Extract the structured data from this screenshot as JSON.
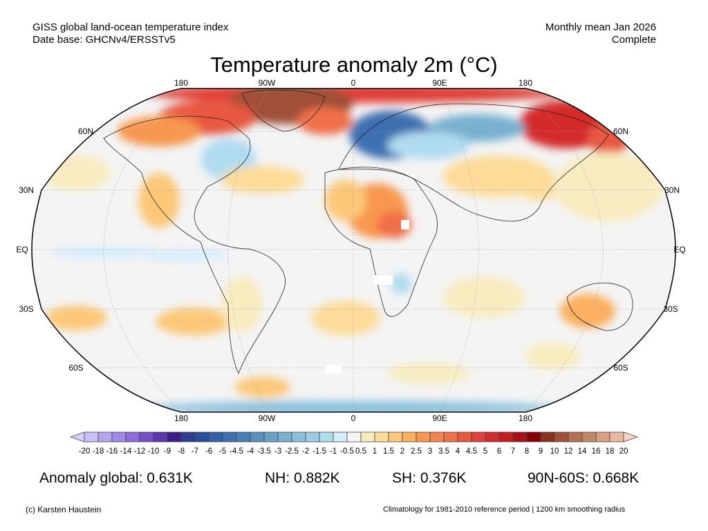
{
  "header": {
    "left_line1": "GISS global land-ocean temperature index",
    "left_line2": "Date base: GHCNv4/ERSSTv5",
    "right_line1": "Monthly mean Jan 2026",
    "right_line2": "Complete",
    "title": "Temperature anomaly 2m (°C)"
  },
  "map": {
    "projection": "Robinson",
    "lon_labels": [
      "180",
      "90W",
      "0",
      "90E",
      "180"
    ],
    "lat_labels_left": [
      "60N",
      "30N",
      "EQ",
      "30S",
      "60S"
    ],
    "lat_labels_right": [
      "60N",
      "30N",
      "EQ",
      "30S",
      "60S"
    ],
    "missing_color": "#ffffff",
    "ocean_neutral_color": "#f4f4f4"
  },
  "colorbar": {
    "labels": [
      "-20",
      "-18",
      "-16",
      "-14",
      "-12",
      "-10",
      "-9",
      "-8",
      "-7",
      "-6",
      "-5",
      "-4.5",
      "-4",
      "-3.5",
      "-3",
      "-2.5",
      "-2",
      "-1.5",
      "-1",
      "-0.5",
      "0.5",
      "1",
      "1.5",
      "2",
      "2.5",
      "3",
      "3.5",
      "4",
      "4.5",
      "5",
      "6",
      "7",
      "8",
      "9",
      "10",
      "12",
      "14",
      "16",
      "18",
      "20"
    ],
    "colors": [
      "#c8c0f8",
      "#b4a4f0",
      "#a088e8",
      "#8c6cdc",
      "#7450c8",
      "#5c38b0",
      "#3c1c88",
      "#2c3c90",
      "#2c4c9c",
      "#3460a8",
      "#3c70b0",
      "#4880b8",
      "#5890c0",
      "#68a0c8",
      "#78b0d0",
      "#88c0dc",
      "#9ccce4",
      "#b0dcf0",
      "#d4ecfc",
      "#f4f4f4",
      "#f8ecc0",
      "#fcdc98",
      "#fcc878",
      "#fcb060",
      "#f89850",
      "#f48450",
      "#f07048",
      "#e85840",
      "#e04038",
      "#d42c2c",
      "#c42024",
      "#a81018",
      "#880008",
      "#8c3020",
      "#a05038",
      "#b47050",
      "#c48868",
      "#d8a080",
      "#e8b8a0"
    ],
    "low_end_color": "#d4d0f8",
    "high_end_color": "#fcd4c0"
  },
  "stats": {
    "global": "Anomaly global: 0.631K",
    "nh": "NH: 0.882K",
    "sh": "SH: 0.376K",
    "band": "90N-60S: 0.668K"
  },
  "footer": {
    "credit": "(c) Karsten Haustein",
    "note": "Climatology for 1981-2010 reference period | 1200 km smoothing radius"
  }
}
